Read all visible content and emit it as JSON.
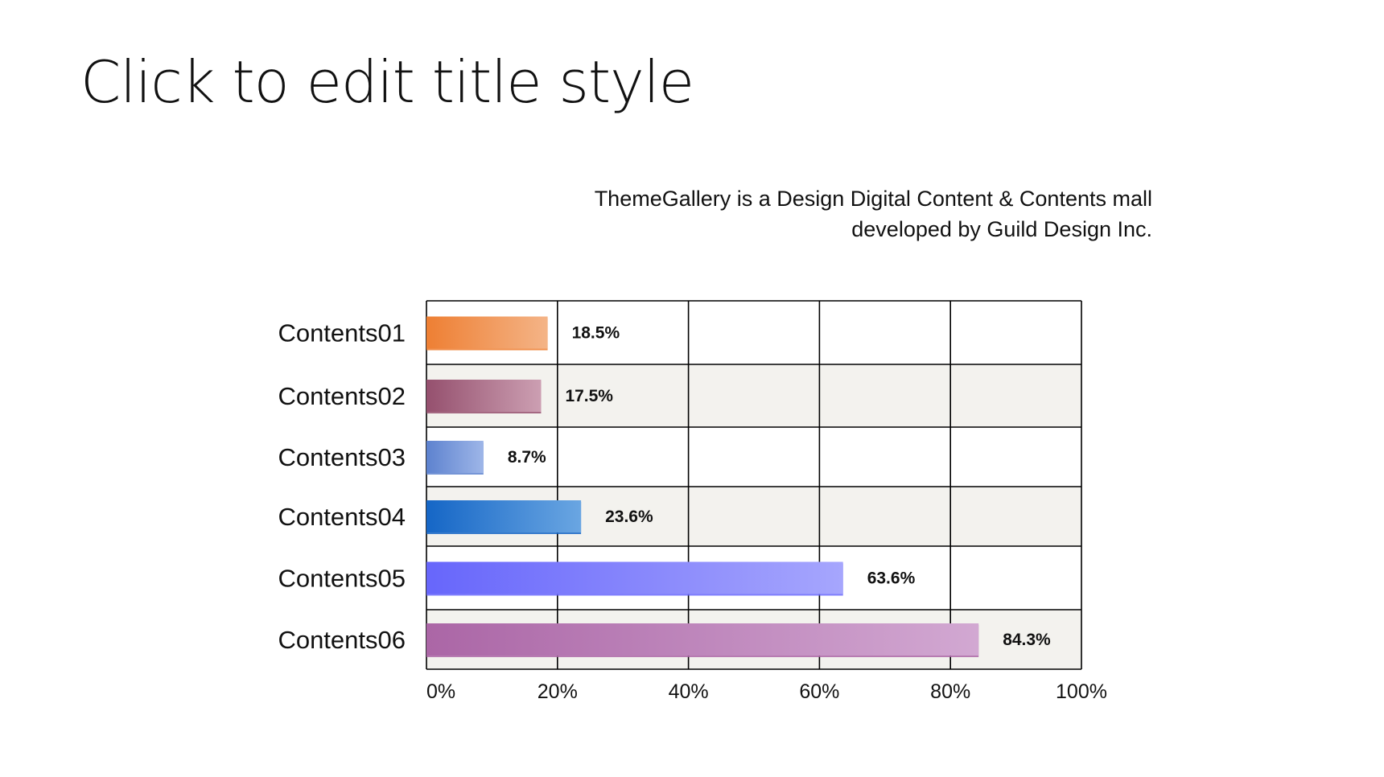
{
  "slide": {
    "title": "Click to edit title style",
    "subtitle_lines": [
      "ThemeGallery  is a Design Digital Content & Contents mall",
      "developed by Guild Design Inc."
    ]
  },
  "chart_data": {
    "type": "bar",
    "orientation": "horizontal",
    "categories": [
      "Contents01",
      "Contents02",
      "Contents03",
      "Contents04",
      "Contents05",
      "Contents06"
    ],
    "values": [
      18.5,
      17.5,
      8.7,
      23.6,
      63.6,
      84.3
    ],
    "data_labels": [
      "18.5%",
      "17.5%",
      "8.7%",
      "23.6%",
      "63.6%",
      "84.3%"
    ],
    "xlim": [
      0,
      100
    ],
    "x_ticks": [
      0,
      20,
      40,
      60,
      80,
      100
    ],
    "x_tick_labels": [
      "0%",
      "20%",
      "40%",
      "60%",
      "80%",
      "100%"
    ],
    "grid": true,
    "legend": "none",
    "bar_colors": [
      {
        "from": "#ee7f33",
        "to": "#f4b487"
      },
      {
        "from": "#95506e",
        "to": "#cc9fb2"
      },
      {
        "from": "#5d82cf",
        "to": "#9eb6e8"
      },
      {
        "from": "#1566c6",
        "to": "#6aa6e2"
      },
      {
        "from": "#6766fb",
        "to": "#a6a6fd"
      },
      {
        "from": "#ab66a6",
        "to": "#d2a8d2"
      }
    ],
    "row_band_colors": [
      "#ffffff",
      "#f3f2ee"
    ]
  }
}
